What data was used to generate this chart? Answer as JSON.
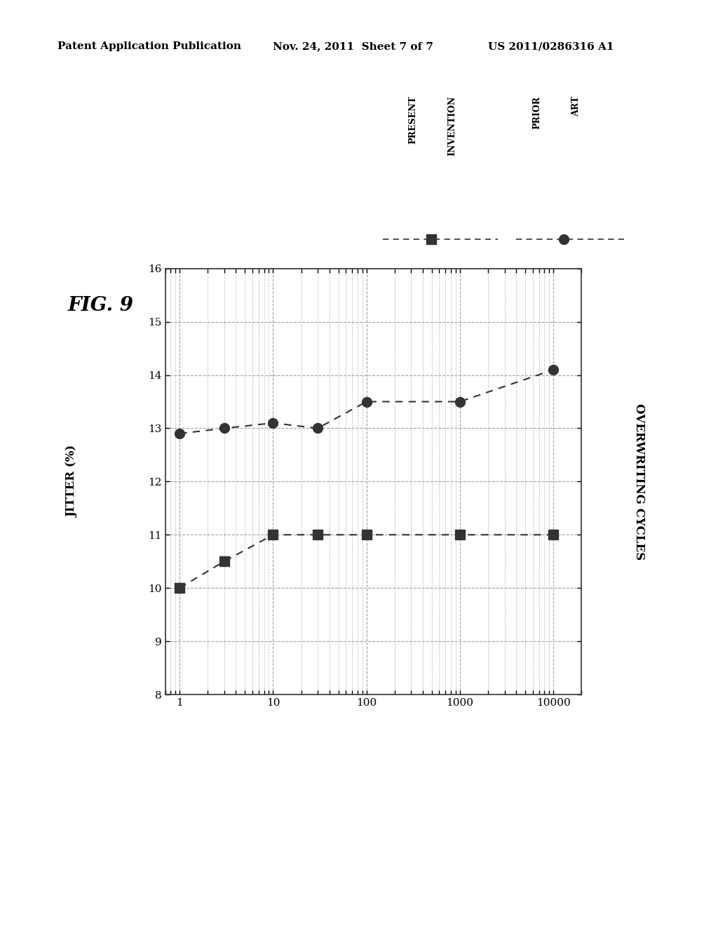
{
  "header_left": "Patent Application Publication",
  "header_center": "Nov. 24, 2011  Sheet 7 of 7",
  "header_right": "US 2011/0286316 A1",
  "x_axis_label": "OVERWRITING CYCLES",
  "y_axis_label": "JITTER (%)",
  "fig_label": "FIG. 9",
  "ylim": [
    8,
    16
  ],
  "yticks": [
    8,
    9,
    10,
    11,
    12,
    13,
    14,
    15,
    16
  ],
  "xlim_min": 0.7,
  "xlim_max": 20000,
  "xticks": [
    1,
    10,
    100,
    1000,
    10000
  ],
  "xtick_labels": [
    "1",
    "10",
    "100",
    "1000",
    "10000"
  ],
  "prior_art_x": [
    1,
    3,
    10,
    30,
    100,
    1000,
    10000
  ],
  "prior_art_y": [
    12.9,
    13.0,
    13.1,
    13.0,
    13.5,
    13.5,
    14.1
  ],
  "present_inv_x": [
    1,
    3,
    10,
    30,
    100,
    1000,
    10000
  ],
  "present_inv_y": [
    10.0,
    10.5,
    11.0,
    11.0,
    11.0,
    11.0,
    11.0
  ],
  "marker_color": "#333333",
  "line_color": "#555555",
  "grid_color": "#999999",
  "bg_color": "#ffffff",
  "legend_present_w1": "PRESENT",
  "legend_present_w2": "INVENTION",
  "legend_prior_w1": "PRIOR",
  "legend_prior_w2": "ART"
}
